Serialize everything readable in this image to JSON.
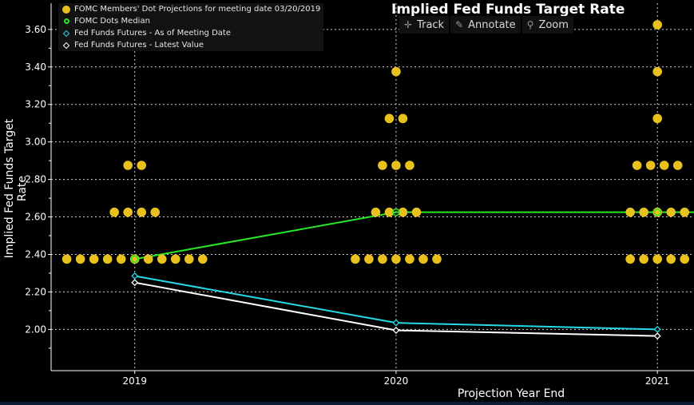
{
  "toolbar": {
    "track_label": "Track",
    "annotate_label": "Annotate",
    "zoom_label": "Zoom"
  },
  "legend": [
    {
      "label": "FOMC Members' Dot Projections for meeting date 03/20/2019",
      "symbol": "dot",
      "color": "#e8c11e"
    },
    {
      "label": "FOMC Dots Median",
      "symbol": "ring",
      "color": "#27e827"
    },
    {
      "label": "Fed Funds Futures - As of Meeting Date",
      "symbol": "diamond",
      "color": "#26d9e6"
    },
    {
      "label": "Fed Funds Futures - Latest Value",
      "symbol": "diamond",
      "color": "#ffffff"
    }
  ],
  "chart_data": {
    "type": "scatter",
    "title": "Implied Fed Funds Target Rate",
    "xlabel": "Projection Year End",
    "ylabel": "Implied Fed Funds Target Rate",
    "x_ticks": [
      "2019",
      "2020",
      "2021"
    ],
    "y_ticks": [
      "2.00",
      "2.20",
      "2.40",
      "2.60",
      "2.80",
      "3.00",
      "3.20",
      "3.40",
      "3.60"
    ],
    "xlim": [
      2018.68,
      2021.14
    ],
    "ylim": [
      1.78,
      3.74
    ],
    "grid": true,
    "legend_position": "top-left",
    "dot_projections": [
      {
        "year": 2019,
        "rate": 2.375,
        "count": 11
      },
      {
        "year": 2019,
        "rate": 2.625,
        "count": 4
      },
      {
        "year": 2019,
        "rate": 2.875,
        "count": 2
      },
      {
        "year": 2020,
        "rate": 2.375,
        "count": 7
      },
      {
        "year": 2020,
        "rate": 2.625,
        "count": 4
      },
      {
        "year": 2020,
        "rate": 2.875,
        "count": 3
      },
      {
        "year": 2020,
        "rate": 3.125,
        "count": 2
      },
      {
        "year": 2020,
        "rate": 3.375,
        "count": 1
      },
      {
        "year": 2021,
        "rate": 2.375,
        "count": 5
      },
      {
        "year": 2021,
        "rate": 2.625,
        "count": 5
      },
      {
        "year": 2021,
        "rate": 2.875,
        "count": 4
      },
      {
        "year": 2021,
        "rate": 3.125,
        "count": 1
      },
      {
        "year": 2021,
        "rate": 3.375,
        "count": 1
      },
      {
        "year": 2021,
        "rate": 3.625,
        "count": 1
      }
    ],
    "series": [
      {
        "name": "FOMC Dots Median",
        "x": [
          2019,
          2020,
          2021,
          2021.14
        ],
        "y": [
          2.375,
          2.625,
          2.625,
          2.625
        ],
        "color": "#27e827"
      },
      {
        "name": "Fed Funds Futures - As of Meeting Date",
        "x": [
          2019,
          2020,
          2021
        ],
        "y": [
          2.285,
          2.035,
          2.0
        ],
        "color": "#26d9e6"
      },
      {
        "name": "Fed Funds Futures - Latest Value",
        "x": [
          2019,
          2020,
          2021
        ],
        "y": [
          2.25,
          1.995,
          1.965
        ],
        "color": "#ffffff"
      }
    ],
    "colors": {
      "dots": "#e8c11e",
      "grid": "#cfcfcf",
      "axis": "#ffffff"
    }
  }
}
